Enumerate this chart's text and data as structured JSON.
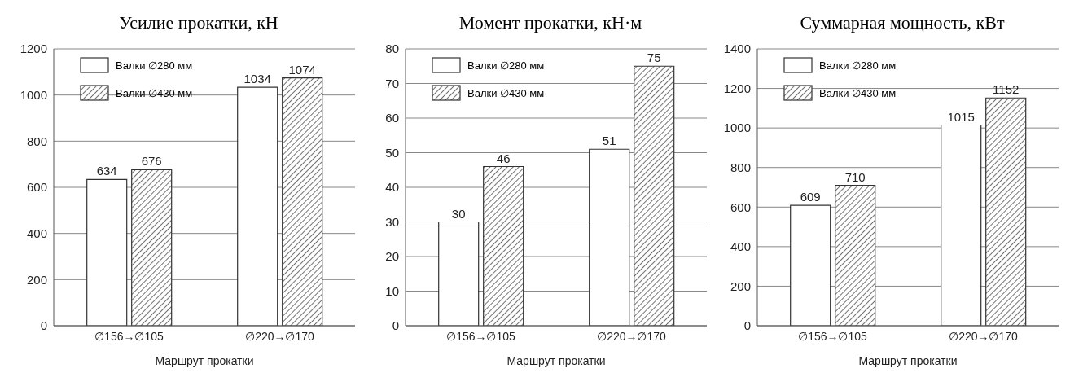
{
  "chart_data": [
    {
      "type": "bar",
      "title": "Усилие прокатки, кН",
      "xlabel": "Маршрут прокатки",
      "categories": [
        "∅156→∅105",
        "∅220→∅170"
      ],
      "series": [
        {
          "name": "Валки ∅280 мм",
          "color": "#ffffff",
          "values": [
            634,
            1034
          ]
        },
        {
          "name": "Валки ∅430 мм",
          "color": "#333333",
          "values": [
            676,
            1074
          ]
        }
      ],
      "ylim": [
        0,
        1200
      ],
      "yticks": [
        0,
        200,
        400,
        600,
        800,
        1000,
        1200
      ],
      "grid": "y",
      "legend": "top left",
      "data_labels": true
    },
    {
      "type": "bar",
      "title": "Момент прокатки, кН·м",
      "xlabel": "Маршрут прокатки",
      "categories": [
        "∅156→∅105",
        "∅220→∅170"
      ],
      "series": [
        {
          "name": "Валки ∅280 мм",
          "color": "#ffffff",
          "values": [
            30,
            51
          ]
        },
        {
          "name": "Валки ∅430 мм",
          "color": "#333333",
          "values": [
            46,
            75
          ]
        }
      ],
      "ylim": [
        0,
        80
      ],
      "yticks": [
        0,
        10,
        20,
        30,
        40,
        50,
        60,
        70,
        80
      ],
      "grid": "y",
      "legend": "top left",
      "data_labels": true
    },
    {
      "type": "bar",
      "title": "Суммарная мощность, кВт",
      "xlabel": "Маршрут прокатки",
      "categories": [
        "∅156→∅105",
        "∅220→∅170"
      ],
      "series": [
        {
          "name": "Валки ∅280 мм",
          "color": "#ffffff",
          "values": [
            609,
            1015
          ]
        },
        {
          "name": "Валки ∅430 мм",
          "color": "#333333",
          "values": [
            710,
            1152
          ]
        }
      ],
      "ylim": [
        0,
        1400
      ],
      "yticks": [
        0,
        200,
        400,
        600,
        800,
        1000,
        1200,
        1400
      ],
      "grid": "y",
      "legend": "top left",
      "data_labels": true
    }
  ]
}
